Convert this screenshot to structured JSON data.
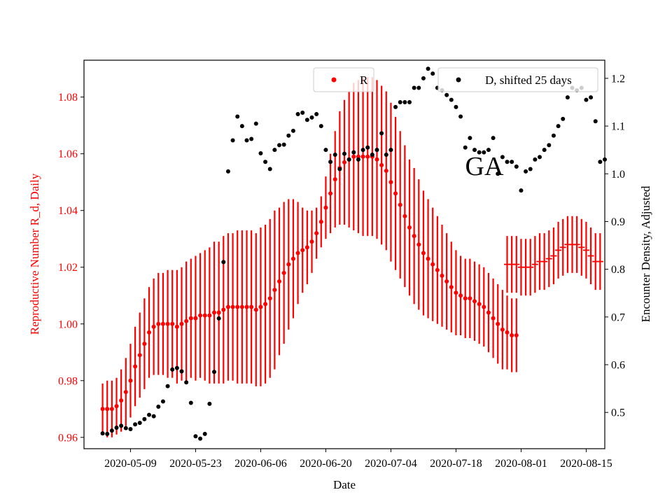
{
  "chart_data": {
    "type": "scatter",
    "title": "",
    "annotation": "GA",
    "xlabel": "Date",
    "ylabel_left": "Reproductive Number R_d, Daily",
    "ylabel_right": "Encounter Density, Adjusted",
    "xlim": [
      "2020-04-29",
      "2020-08-19"
    ],
    "ylim_left": [
      0.956,
      1.093
    ],
    "ylim_right": [
      0.424,
      1.238
    ],
    "x_ticks": [
      "2020-05-09",
      "2020-05-23",
      "2020-06-06",
      "2020-06-20",
      "2020-07-04",
      "2020-07-18",
      "2020-08-01",
      "2020-08-15"
    ],
    "y_ticks_left": [
      "0.96",
      "0.98",
      "1.00",
      "1.02",
      "1.04",
      "1.06",
      "1.08"
    ],
    "y_ticks_right": [
      "0.5",
      "0.6",
      "0.7",
      "0.8",
      "0.9",
      "1.0",
      "1.1",
      "1.2"
    ],
    "colors": {
      "R": "#ff0000",
      "D": "#000000",
      "left_axis": "#ff0000",
      "right_axis": "#000000"
    },
    "legend": [
      {
        "label": "R",
        "color": "#ff0000",
        "position": "upper-center"
      },
      {
        "label": "D, shifted 25 days",
        "color": "#000000",
        "position": "upper-right"
      }
    ],
    "series": [
      {
        "name": "R",
        "axis": "left",
        "marker": "dot",
        "start_date": "2020-05-03",
        "values": [
          0.97,
          0.97,
          0.97,
          0.971,
          0.973,
          0.976,
          0.98,
          0.985,
          0.989,
          0.993,
          0.997,
          0.999,
          1.0,
          1.0,
          1.0,
          1.0,
          0.999,
          1.0,
          1.001,
          1.002,
          1.002,
          1.003,
          1.003,
          1.003,
          1.004,
          1.004,
          1.005,
          1.006,
          1.006,
          1.006,
          1.006,
          1.006,
          1.006,
          1.005,
          1.006,
          1.007,
          1.009,
          1.012,
          1.015,
          1.018,
          1.021,
          1.023,
          1.025,
          1.026,
          1.027,
          1.029,
          1.032,
          1.036,
          1.041,
          1.046,
          1.051,
          1.055,
          1.057,
          1.058,
          1.059,
          1.059,
          1.059,
          1.059,
          1.059,
          1.058,
          1.056,
          1.054,
          1.05,
          1.046,
          1.042,
          1.038,
          1.034,
          1.031,
          1.028,
          1.025,
          1.023,
          1.021,
          1.019,
          1.017,
          1.015,
          1.013,
          1.011,
          1.01,
          1.009,
          1.009,
          1.008,
          1.007,
          1.006,
          1.004,
          1.002,
          1.0,
          0.998,
          0.997,
          0.996,
          0.996
        ],
        "errors": [
          0.009,
          0.01,
          0.01,
          0.01,
          0.011,
          0.012,
          0.013,
          0.014,
          0.015,
          0.016,
          0.016,
          0.017,
          0.018,
          0.018,
          0.019,
          0.019,
          0.02,
          0.02,
          0.021,
          0.021,
          0.022,
          0.022,
          0.023,
          0.024,
          0.025,
          0.025,
          0.026,
          0.026,
          0.026,
          0.027,
          0.027,
          0.027,
          0.027,
          0.027,
          0.028,
          0.028,
          0.028,
          0.028,
          0.026,
          0.025,
          0.023,
          0.021,
          0.018,
          0.015,
          0.013,
          0.011,
          0.009,
          0.009,
          0.011,
          0.014,
          0.017,
          0.02,
          0.022,
          0.024,
          0.026,
          0.027,
          0.028,
          0.028,
          0.028,
          0.028,
          0.028,
          0.028,
          0.028,
          0.027,
          0.026,
          0.025,
          0.024,
          0.024,
          0.023,
          0.022,
          0.021,
          0.02,
          0.019,
          0.018,
          0.017,
          0.016,
          0.015,
          0.014,
          0.014,
          0.014,
          0.014,
          0.014,
          0.014,
          0.014,
          0.014,
          0.014,
          0.014,
          0.013,
          0.013,
          0.013
        ]
      },
      {
        "name": "R",
        "axis": "left",
        "marker": "hline",
        "start_date": "2020-07-29",
        "values": [
          1.021,
          1.021,
          1.021,
          1.02,
          1.02,
          1.02,
          1.021,
          1.022,
          1.022,
          1.023,
          1.024,
          1.026,
          1.027,
          1.028,
          1.028,
          1.028,
          1.027,
          1.026,
          1.024,
          1.022,
          1.022
        ],
        "errors": [
          0.01,
          0.01,
          0.01,
          0.01,
          0.01,
          0.01,
          0.01,
          0.01,
          0.01,
          0.01,
          0.01,
          0.01,
          0.01,
          0.01,
          0.01,
          0.01,
          0.01,
          0.01,
          0.01,
          0.01,
          0.01
        ]
      },
      {
        "name": "D, shifted 25 days",
        "axis": "right",
        "marker": "dot",
        "start_date": "2020-05-03",
        "values": [
          0.456,
          0.455,
          0.462,
          0.468,
          0.472,
          0.467,
          0.465,
          0.475,
          0.478,
          0.486,
          0.495,
          0.492,
          0.512,
          0.523,
          0.555,
          0.59,
          0.593,
          0.586,
          0.563,
          0.52,
          0.45,
          0.445,
          0.455,
          0.518,
          0.585,
          0.697,
          0.815,
          1.005,
          1.07,
          1.12,
          1.1,
          1.07,
          1.073,
          1.105,
          1.043,
          1.025,
          1.01,
          1.05,
          1.06,
          1.061,
          1.08,
          1.09,
          1.125,
          1.128,
          1.113,
          1.118,
          1.125,
          1.1,
          1.05,
          1.025,
          1.04,
          1.01,
          1.042,
          1.03,
          1.045,
          1.03,
          1.05,
          1.055,
          1.04,
          1.05,
          1.085,
          1.04,
          1.05,
          1.14,
          1.15,
          1.15,
          1.15,
          1.18,
          1.18,
          1.2,
          1.22,
          1.21,
          1.18,
          1.175,
          1.165,
          1.155,
          1.14,
          1.12,
          1.055,
          1.075,
          1.05,
          1.045,
          1.045,
          1.05,
          1.075,
          1.0,
          1.035,
          1.025,
          1.025,
          1.015,
          0.965,
          1.005,
          1.01,
          1.03,
          1.035,
          1.05,
          1.06,
          1.08,
          1.1,
          1.115,
          1.16,
          1.18,
          1.175,
          1.18,
          1.155,
          1.16,
          1.11,
          1.025,
          1.03
        ]
      }
    ]
  }
}
